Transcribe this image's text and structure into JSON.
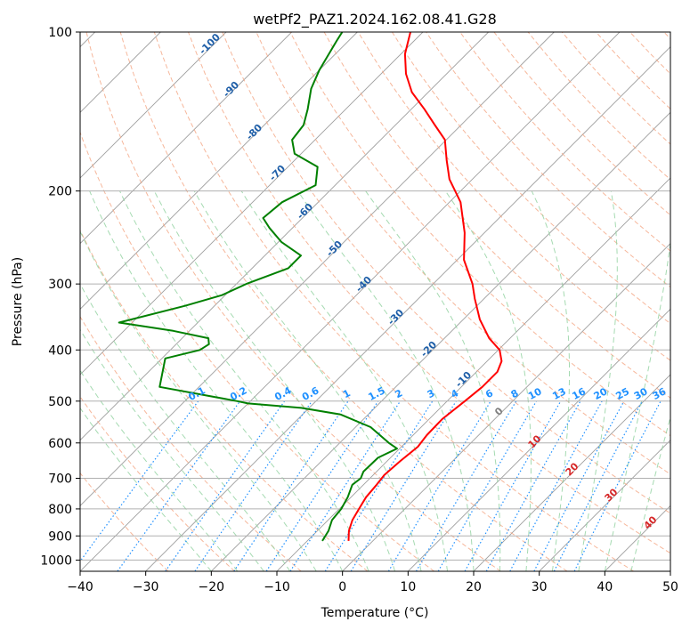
{
  "chart_data": {
    "type": "line",
    "title": "wetPf2_PAZ1.2024.162.08.41.G28",
    "xlabel": "Temperature (°C)",
    "ylabel": "Pressure (hPa)",
    "xlim": [
      -40,
      50
    ],
    "ylim": [
      1050,
      100
    ],
    "yscale": "log",
    "diagram": "skew-T log-P",
    "x_ticks": [
      "−40",
      "−30",
      "−20",
      "−10",
      "0",
      "10",
      "20",
      "30",
      "40",
      "50"
    ],
    "x_tick_values": [
      -40,
      -30,
      -20,
      -10,
      0,
      10,
      20,
      30,
      40,
      50
    ],
    "y_ticks": [
      "100",
      "200",
      "300",
      "400",
      "500",
      "600",
      "700",
      "800",
      "900",
      "1000"
    ],
    "y_tick_values": [
      100,
      200,
      300,
      400,
      500,
      600,
      700,
      800,
      900,
      1000
    ],
    "grid": true,
    "colors": {
      "temperature": "#ff0000",
      "dewpoint": "#008000",
      "isotherm": "#9e9e9e",
      "dry_adiabat": "#f4a582",
      "moist_adiabat": "#8fd19e",
      "mixing_ratio": "#1e90ff",
      "theta_label": "#1f5fa8",
      "wetbulb_label": "#d62728"
    },
    "series": [
      {
        "key": "temperature",
        "points": [
          [
            920,
            -3.7
          ],
          [
            880,
            -5.2
          ],
          [
            840,
            -6.3
          ],
          [
            800,
            -7.0
          ],
          [
            760,
            -7.7
          ],
          [
            720,
            -8.0
          ],
          [
            690,
            -8.3
          ],
          [
            650,
            -8.0
          ],
          [
            610,
            -7.5
          ],
          [
            580,
            -7.9
          ],
          [
            540,
            -8.0
          ],
          [
            500,
            -7.3
          ],
          [
            470,
            -6.8
          ],
          [
            440,
            -6.8
          ],
          [
            420,
            -7.8
          ],
          [
            400,
            -9.8
          ],
          [
            380,
            -13.2
          ],
          [
            350,
            -17.5
          ],
          [
            320,
            -21.4
          ],
          [
            300,
            -24.0
          ],
          [
            270,
            -29.0
          ],
          [
            240,
            -33.0
          ],
          [
            210,
            -38.3
          ],
          [
            190,
            -43.5
          ],
          [
            175,
            -46.8
          ],
          [
            160,
            -50.2
          ],
          [
            150,
            -54.0
          ],
          [
            140,
            -58.0
          ],
          [
            130,
            -62.5
          ],
          [
            120,
            -66.2
          ],
          [
            110,
            -69.4
          ],
          [
            100,
            -71.9
          ]
        ]
      },
      {
        "key": "dewpoint",
        "points": [
          [
            920,
            -7.7
          ],
          [
            880,
            -8.3
          ],
          [
            840,
            -9.4
          ],
          [
            800,
            -9.7
          ],
          [
            760,
            -10.5
          ],
          [
            720,
            -11.7
          ],
          [
            700,
            -11.4
          ],
          [
            680,
            -12.0
          ],
          [
            640,
            -11.9
          ],
          [
            615,
            -10.4
          ],
          [
            600,
            -12.5
          ],
          [
            560,
            -17.7
          ],
          [
            530,
            -24.2
          ],
          [
            515,
            -31.2
          ],
          [
            505,
            -40.0
          ],
          [
            500,
            -42.0
          ],
          [
            470,
            -56.0
          ],
          [
            430,
            -58.5
          ],
          [
            415,
            -59.5
          ],
          [
            400,
            -55.5
          ],
          [
            390,
            -55.0
          ],
          [
            380,
            -56.0
          ],
          [
            368,
            -62.5
          ],
          [
            355,
            -72.0
          ],
          [
            330,
            -64.5
          ],
          [
            315,
            -60.5
          ],
          [
            300,
            -58.5
          ],
          [
            280,
            -54.5
          ],
          [
            265,
            -54.5
          ],
          [
            250,
            -59.5
          ],
          [
            235,
            -63.5
          ],
          [
            225,
            -66.0
          ],
          [
            210,
            -65.5
          ],
          [
            195,
            -63.0
          ],
          [
            180,
            -65.5
          ],
          [
            170,
            -71.0
          ],
          [
            160,
            -73.5
          ],
          [
            150,
            -74.0
          ],
          [
            140,
            -75.8
          ],
          [
            128,
            -78.4
          ],
          [
            118,
            -80.0
          ],
          [
            110,
            -81.0
          ],
          [
            104,
            -81.8
          ],
          [
            100,
            -82.3
          ]
        ]
      }
    ],
    "annotations": {
      "mixing_ratio": [
        "0.1",
        "0.2",
        "0.4",
        "0.6",
        "1",
        "1.5",
        "2",
        "3",
        "4",
        "6",
        "8",
        "10",
        "13",
        "16",
        "20",
        "25",
        "30",
        "36"
      ],
      "mixing_ratio_values": [
        0.1,
        0.2,
        0.4,
        0.6,
        1,
        1.5,
        2,
        3,
        4,
        6,
        8,
        10,
        13,
        16,
        20,
        25,
        30,
        36
      ],
      "potential_temperature": [
        "-100",
        "-90",
        "-80",
        "-70",
        "-60",
        "-50",
        "-40",
        "-30",
        "-20",
        "-10"
      ],
      "wet_bulb": [
        "0",
        "10",
        "20",
        "30",
        "40"
      ]
    }
  }
}
